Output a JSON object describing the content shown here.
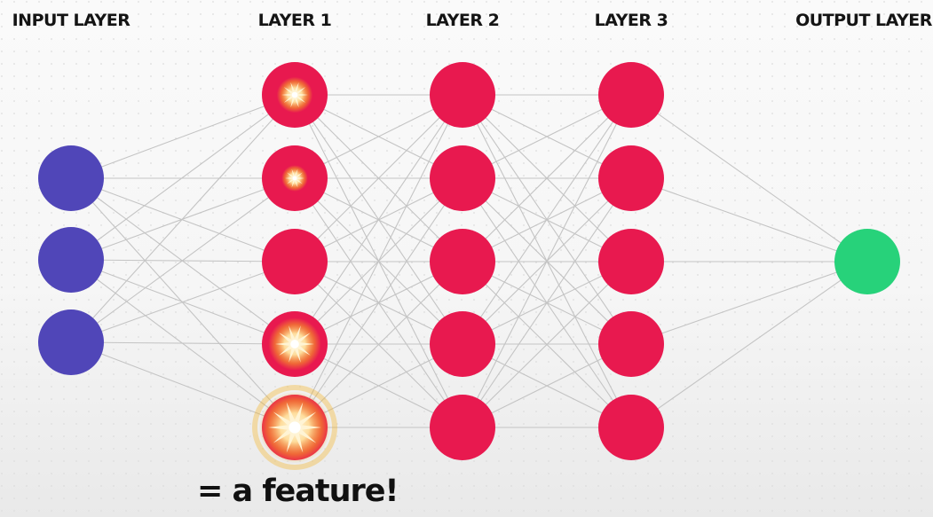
{
  "labels": {
    "input": "INPUT LAYER",
    "layer1": "LAYER 1",
    "layer2": "LAYER 2",
    "layer3": "LAYER 3",
    "output": "OUTPUT LAYER"
  },
  "caption": "= a feature!",
  "layers": [
    {
      "name": "input",
      "nodes": 3,
      "color": "#5046b8"
    },
    {
      "name": "layer1",
      "nodes": 5,
      "color": "#e8194f"
    },
    {
      "name": "layer2",
      "nodes": 5,
      "color": "#e8194f"
    },
    {
      "name": "layer3",
      "nodes": 5,
      "color": "#e8194f"
    },
    {
      "name": "output",
      "nodes": 1,
      "color": "#27d27a"
    }
  ],
  "colors": {
    "edge": "#c4c4c4",
    "spark": "#fff4d6",
    "spark_glow": "#f5b21e"
  }
}
